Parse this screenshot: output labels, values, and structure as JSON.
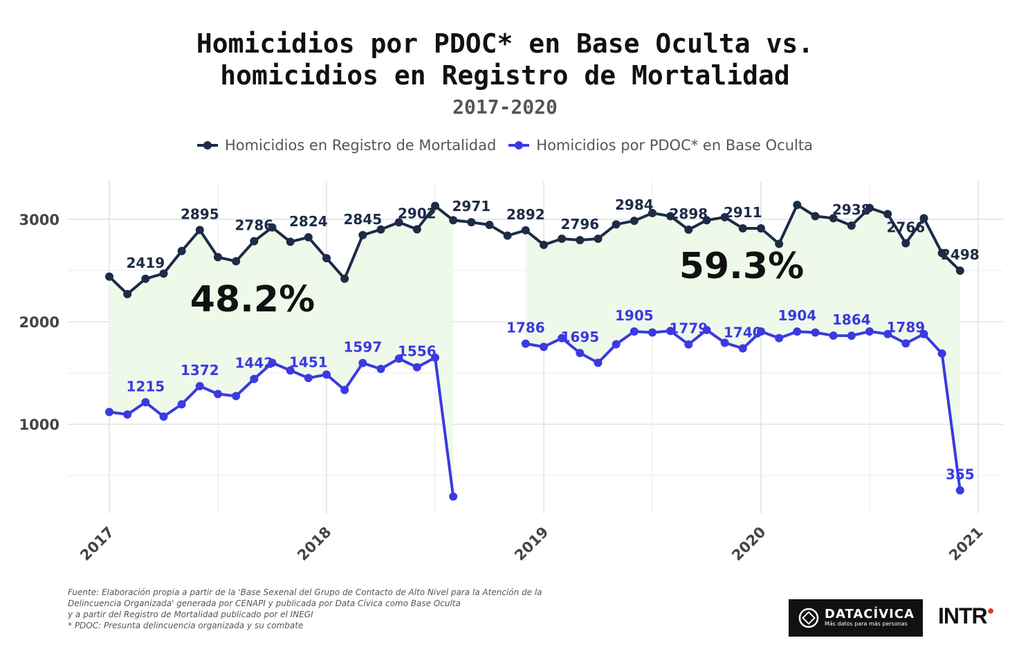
{
  "title_line1": "Homicidios por PDOC* en Base Oculta vs.",
  "title_line2": "homicidios en Registro de Mortalidad",
  "subtitle": "2017-2020",
  "legend": [
    {
      "label": "Homicidios en Registro de Mortalidad",
      "color": "#1d2b46"
    },
    {
      "label": "Homicidios por PDOC* en Base Oculta",
      "color": "#3a3ae0"
    }
  ],
  "annotations": [
    {
      "text": "48.2%"
    },
    {
      "text": "59.3%"
    }
  ],
  "footnote": [
    "Fuente: Elaboración propia a partir de la 'Base Sexenal del Grupo de Contacto de Alto Nivel para la Atención de la",
    "Delincuencia Organizada' generada por CENAPI y publicada por Data Cívica como Base Oculta",
    "y a partir del Registro de Mortalidad publicado por el INEGI",
    "* PDOC: Presunta delincuencia organizada y su combate"
  ],
  "logos": {
    "datacivica_name": "DATACÍVICA",
    "datacivica_tagline": "Más datos para más personas",
    "intr": "INTR"
  },
  "chart_data": {
    "type": "line",
    "title": "",
    "xlabel": "",
    "ylabel": "",
    "x_ticks": [
      "2017",
      "2018",
      "2019",
      "2020",
      "2021"
    ],
    "y_ticks": [
      1000,
      2000,
      3000
    ],
    "xlim": [
      "2017-01",
      "2021-01"
    ],
    "ylim": [
      130,
      3370
    ],
    "grid": true,
    "legend_position": "top",
    "series": [
      {
        "name": "Homicidios en Registro de Mortalidad",
        "color": "#1d2b46",
        "x": [
          "2017-01",
          "2017-02",
          "2017-03",
          "2017-04",
          "2017-05",
          "2017-06",
          "2017-07",
          "2017-08",
          "2017-09",
          "2017-10",
          "2017-11",
          "2017-12",
          "2018-01",
          "2018-02",
          "2018-03",
          "2018-04",
          "2018-05",
          "2018-06",
          "2018-07",
          "2018-08",
          "2018-09",
          "2018-10",
          "2018-11",
          "2018-12",
          "2019-01",
          "2019-02",
          "2019-03",
          "2019-04",
          "2019-05",
          "2019-06",
          "2019-07",
          "2019-08",
          "2019-09",
          "2019-10",
          "2019-11",
          "2019-12",
          "2020-01",
          "2020-02",
          "2020-03",
          "2020-04",
          "2020-05",
          "2020-06",
          "2020-07",
          "2020-08",
          "2020-09",
          "2020-10",
          "2020-11",
          "2020-12"
        ],
        "values": [
          2440,
          2270,
          2419,
          2470,
          2690,
          2895,
          2630,
          2590,
          2786,
          2920,
          2780,
          2824,
          2620,
          2420,
          2845,
          2900,
          2970,
          2902,
          3130,
          2990,
          2971,
          2945,
          2840,
          2892,
          2750,
          2810,
          2796,
          2810,
          2950,
          2984,
          3060,
          3030,
          2898,
          2990,
          3020,
          2911,
          2911,
          2760,
          3140,
          3030,
          3010,
          2938,
          3110,
          3050,
          2766,
          3010,
          2670,
          2498
        ],
        "labels": [
          {
            "x": "2017-03",
            "text": "2419"
          },
          {
            "x": "2017-06",
            "text": "2895"
          },
          {
            "x": "2017-09",
            "text": "2786"
          },
          {
            "x": "2017-12",
            "text": "2824"
          },
          {
            "x": "2018-03",
            "text": "2845"
          },
          {
            "x": "2018-06",
            "text": "2902"
          },
          {
            "x": "2018-09",
            "text": "2971"
          },
          {
            "x": "2018-12",
            "text": "2892"
          },
          {
            "x": "2019-03",
            "text": "2796"
          },
          {
            "x": "2019-06",
            "text": "2984"
          },
          {
            "x": "2019-09",
            "text": "2898"
          },
          {
            "x": "2019-12",
            "text": "2911"
          },
          {
            "x": "2020-06",
            "text": "2938"
          },
          {
            "x": "2020-09",
            "text": "2766"
          },
          {
            "x": "2020-12",
            "text": "2498"
          }
        ]
      },
      {
        "name": "Homicidios por PDOC* en Base Oculta",
        "color": "#3a3ae0",
        "x": [
          "2017-01",
          "2017-02",
          "2017-03",
          "2017-04",
          "2017-05",
          "2017-06",
          "2017-07",
          "2017-08",
          "2017-09",
          "2017-10",
          "2017-11",
          "2017-12",
          "2018-01",
          "2018-02",
          "2018-03",
          "2018-04",
          "2018-05",
          "2018-06",
          "2018-07",
          "2018-08",
          "2018-12",
          "2019-01",
          "2019-02",
          "2019-03",
          "2019-04",
          "2019-05",
          "2019-06",
          "2019-07",
          "2019-08",
          "2019-09",
          "2019-10",
          "2019-11",
          "2019-12",
          "2020-01",
          "2020-02",
          "2020-03",
          "2020-04",
          "2020-05",
          "2020-06",
          "2020-07",
          "2020-08",
          "2020-09",
          "2020-10",
          "2020-11",
          "2020-12"
        ],
        "values": [
          1120,
          1095,
          1215,
          1075,
          1195,
          1372,
          1295,
          1275,
          1442,
          1600,
          1525,
          1451,
          1485,
          1335,
          1597,
          1540,
          1640,
          1556,
          1650,
          295,
          1786,
          1755,
          1840,
          1695,
          1600,
          1780,
          1905,
          1895,
          1910,
          1779,
          1920,
          1795,
          1740,
          1905,
          1840,
          1904,
          1895,
          1865,
          1864,
          1905,
          1880,
          1789,
          1880,
          1690,
          355
        ],
        "labels": [
          {
            "x": "2017-03",
            "text": "1215"
          },
          {
            "x": "2017-06",
            "text": "1372"
          },
          {
            "x": "2017-09",
            "text": "1442"
          },
          {
            "x": "2017-12",
            "text": "1451"
          },
          {
            "x": "2018-03",
            "text": "1597"
          },
          {
            "x": "2018-06",
            "text": "1556"
          },
          {
            "x": "2018-12",
            "text": "1786"
          },
          {
            "x": "2019-03",
            "text": "1695"
          },
          {
            "x": "2019-06",
            "text": "1905"
          },
          {
            "x": "2019-09",
            "text": "1779"
          },
          {
            "x": "2019-12",
            "text": "1740"
          },
          {
            "x": "2020-03",
            "text": "1904"
          },
          {
            "x": "2020-06",
            "text": "1864"
          },
          {
            "x": "2020-09",
            "text": "1789"
          },
          {
            "x": "2020-12",
            "text": "355"
          }
        ]
      }
    ],
    "shaded_regions": [
      {
        "from": "2017-01",
        "to": "2018-08",
        "color": "#eef9ea"
      },
      {
        "from": "2018-12",
        "to": "2020-12",
        "color": "#eef9ea"
      }
    ]
  }
}
